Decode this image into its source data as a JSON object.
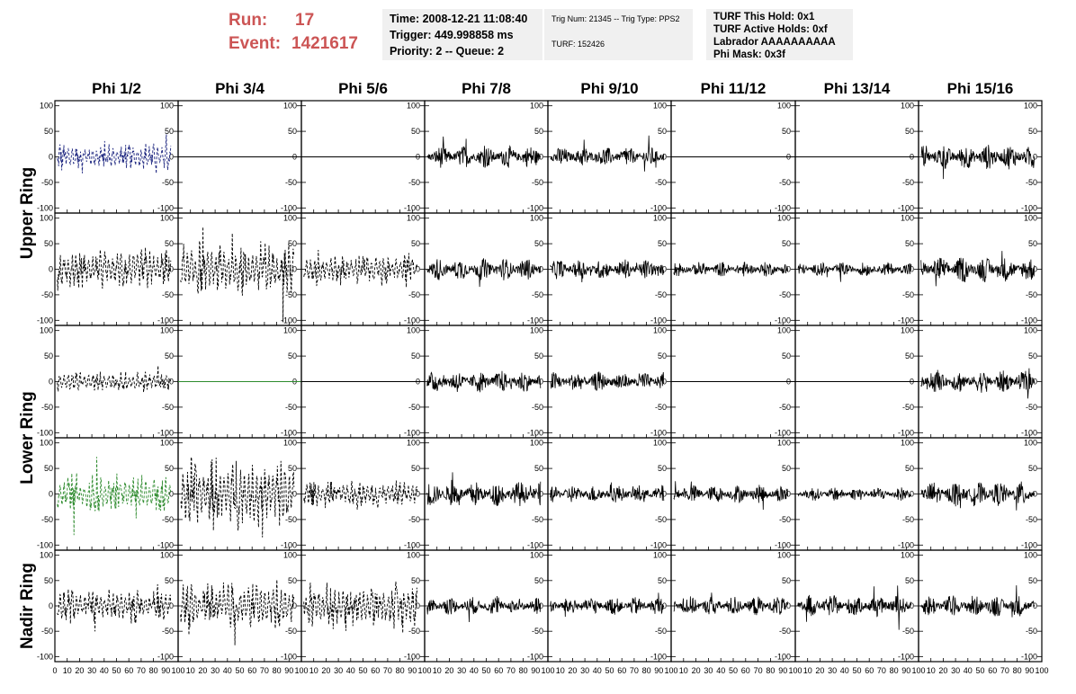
{
  "header": {
    "run_label": "Run:",
    "run_value": "17",
    "event_label": "Event:",
    "event_value": "1421617"
  },
  "info_box_1": {
    "time": "Time: 2008-12-21 11:08:40",
    "trigger": "Trigger: 449.998858 ms",
    "priority": "Priority: 2 -- Queue: 2"
  },
  "info_box_2": {
    "trig": "Trig Num: 21345 -- Trig Type: PPS2",
    "turf": "TURF: 152426"
  },
  "info_box_3": {
    "hold": "TURF This Hold: 0x1",
    "active": "TURF Active Holds: 0xf",
    "labrador": "Labrador AAAAAAAAAA",
    "phimask": "Phi Mask: 0x3f"
  },
  "colors": {
    "trace": "#000000",
    "blue_trace": "#1a237e",
    "green_trace": "#2e8b2e",
    "flat_green": "#2e8b2e"
  },
  "chart_data": {
    "type": "line",
    "columns": [
      "Phi 1/2",
      "Phi 3/4",
      "Phi 5/6",
      "Phi 7/8",
      "Phi 9/10",
      "Phi 11/12",
      "Phi 13/14",
      "Phi 15/16"
    ],
    "ring_labels": [
      "Upper Ring",
      "Lower Ring",
      "Nadir Ring"
    ],
    "ylim": [
      -110,
      110
    ],
    "y_ticks": [
      -100,
      -50,
      0,
      50,
      100
    ],
    "y_tick_labels": [
      "-100",
      "-50",
      "0",
      "50",
      "100"
    ],
    "xlim": [
      0,
      100
    ],
    "x_ticks": [
      0,
      10,
      20,
      30,
      40,
      50,
      60,
      70,
      80,
      90,
      100
    ],
    "x_tick_labels": [
      "0",
      "10",
      "20",
      "30",
      "40",
      "50",
      "60",
      "70",
      "80",
      "90",
      "100"
    ],
    "panels": [
      [
        {
          "style": "dashed",
          "color": "blue",
          "amp": 25
        },
        {
          "style": "flat"
        },
        {
          "style": "flat"
        },
        {
          "style": "solid",
          "amp": 22
        },
        {
          "style": "solid",
          "amp": 20
        },
        {
          "style": "flat"
        },
        {
          "style": "flat"
        },
        {
          "style": "solid",
          "amp": 25
        }
      ],
      [
        {
          "style": "dashed",
          "amp": 35
        },
        {
          "style": "dashed",
          "amp": 45
        },
        {
          "style": "dashed",
          "amp": 30
        },
        {
          "style": "solid",
          "amp": 22
        },
        {
          "style": "solid",
          "amp": 20
        },
        {
          "style": "solid",
          "amp": 15
        },
        {
          "style": "solid",
          "amp": 14
        },
        {
          "style": "solid",
          "amp": 25
        }
      ],
      [
        {
          "style": "dashed",
          "amp": 18
        },
        {
          "style": "flat",
          "color": "green"
        },
        {
          "style": "flat"
        },
        {
          "style": "solid",
          "amp": 22
        },
        {
          "style": "solid",
          "amp": 20
        },
        {
          "style": "flat"
        },
        {
          "style": "flat"
        },
        {
          "style": "solid",
          "amp": 22
        }
      ],
      [
        {
          "style": "dashed",
          "color": "green",
          "amp": 35
        },
        {
          "style": "dashed",
          "amp": 60
        },
        {
          "style": "dashed",
          "amp": 25
        },
        {
          "style": "solid",
          "amp": 25
        },
        {
          "style": "solid",
          "amp": 18
        },
        {
          "style": "solid",
          "amp": 18
        },
        {
          "style": "solid",
          "amp": 14
        },
        {
          "style": "solid",
          "amp": 25
        }
      ],
      [
        {
          "style": "dashed",
          "amp": 30
        },
        {
          "style": "dashed",
          "amp": 40
        },
        {
          "style": "dashed",
          "amp": 40
        },
        {
          "style": "solid",
          "amp": 18
        },
        {
          "style": "solid",
          "amp": 18
        },
        {
          "style": "solid",
          "amp": 20
        },
        {
          "style": "solid",
          "amp": 22
        },
        {
          "style": "solid",
          "amp": 22
        }
      ]
    ]
  }
}
